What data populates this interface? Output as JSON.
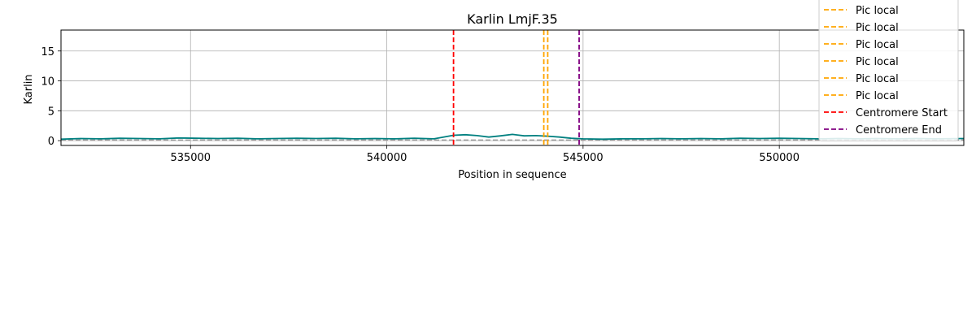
{
  "chart_data": {
    "type": "line",
    "title": "Karlin LmjF.35",
    "xlabel": "Position in sequence",
    "ylabel": "Karlin",
    "xlim": [
      531700,
      554700
    ],
    "ylim": [
      -0.8,
      18.5
    ],
    "xticks": [
      535000,
      540000,
      545000,
      550000
    ],
    "yticks": [
      0,
      5,
      10,
      15
    ],
    "grid": true,
    "legend_location": "upper right",
    "baseline": {
      "y": 0.1,
      "color": "#999999",
      "style": "dashed"
    },
    "series": [
      {
        "name": "",
        "color": "#008080",
        "x": [
          531700,
          532200,
          532700,
          533200,
          533700,
          534200,
          534700,
          535200,
          535700,
          536200,
          536700,
          537200,
          537700,
          538200,
          538700,
          539200,
          539700,
          540200,
          540700,
          541200,
          541700,
          542000,
          542300,
          542600,
          542900,
          543200,
          543500,
          543800,
          544100,
          544400,
          544700,
          545000,
          545500,
          546000,
          546500,
          547000,
          547500,
          548000,
          548500,
          549000,
          549500,
          550000,
          550500,
          551000,
          551500,
          552000,
          552500,
          553000,
          553500,
          554000,
          554700
        ],
        "y": [
          0.25,
          0.35,
          0.3,
          0.4,
          0.35,
          0.3,
          0.45,
          0.4,
          0.35,
          0.4,
          0.3,
          0.35,
          0.4,
          0.35,
          0.4,
          0.3,
          0.35,
          0.3,
          0.4,
          0.3,
          0.9,
          1.0,
          0.85,
          0.6,
          0.8,
          1.05,
          0.8,
          0.85,
          0.75,
          0.6,
          0.4,
          0.3,
          0.25,
          0.3,
          0.3,
          0.35,
          0.3,
          0.35,
          0.3,
          0.4,
          0.35,
          0.4,
          0.35,
          0.3,
          0.35,
          0.3,
          0.35,
          0.3,
          0.35,
          0.3,
          0.35
        ]
      }
    ],
    "vlines": [
      {
        "x": 541700,
        "color": "#ff0000",
        "legend": "Centromere Start"
      },
      {
        "x": 544000,
        "color": "#ffa500",
        "legend": "Pic local"
      },
      {
        "x": 544100,
        "color": "#ffa500",
        "legend": "Pic local"
      },
      {
        "x": 544900,
        "color": "#800080",
        "legend": "Centromere End"
      }
    ],
    "legend": [
      {
        "label": "Pic local",
        "color": "#ffa500"
      },
      {
        "label": "Pic local",
        "color": "#ffa500"
      },
      {
        "label": "Pic local",
        "color": "#ffa500"
      },
      {
        "label": "Pic local",
        "color": "#ffa500"
      },
      {
        "label": "Pic local",
        "color": "#ffa500"
      },
      {
        "label": "Pic local",
        "color": "#ffa500"
      },
      {
        "label": "Centromere Start",
        "color": "#ff0000"
      },
      {
        "label": "Centromere End",
        "color": "#800080"
      }
    ]
  }
}
